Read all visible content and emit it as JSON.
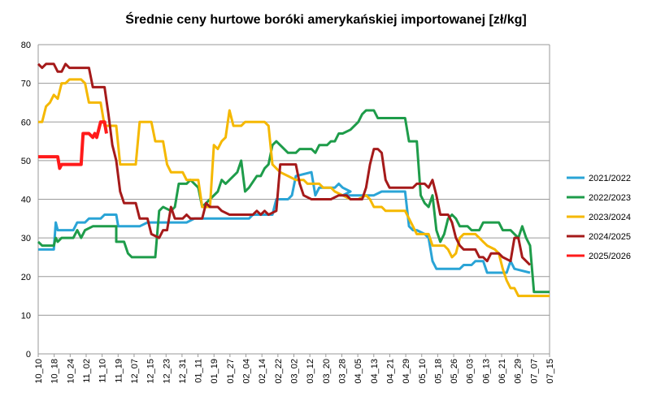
{
  "chart_data": {
    "type": "line",
    "title": "Średnie ceny hurtowe boróki amerykańskiej importowanej [zł/kg]",
    "xlabel": "",
    "ylabel": "",
    "ylim": [
      0,
      80
    ],
    "yticks": [
      0,
      10,
      20,
      30,
      40,
      50,
      60,
      70,
      80
    ],
    "grid": "horizontal",
    "legend": "right",
    "x_ticks": [
      "10_10",
      "10_18",
      "10_24",
      "11_02",
      "11_10",
      "11_19",
      "12_07",
      "12_15",
      "12_23",
      "12_31",
      "01_11",
      "01_19",
      "01_27",
      "02_04",
      "02_14",
      "02_22",
      "03_02",
      "03_12",
      "03_20",
      "03_28",
      "04_05",
      "04_13",
      "04_21",
      "04_29",
      "05_10",
      "05_18",
      "05_26",
      "06_03",
      "06_13",
      "06_21",
      "06_29",
      "07_07",
      "07_15"
    ],
    "x_count": 127,
    "series": [
      {
        "name": "2021/2022",
        "color": "#2AA4D6",
        "points": [
          [
            0,
            27
          ],
          [
            4,
            27
          ],
          [
            4.5,
            34
          ],
          [
            5,
            32
          ],
          [
            9,
            32
          ],
          [
            10,
            34
          ],
          [
            12,
            34
          ],
          [
            13,
            35
          ],
          [
            16,
            35
          ],
          [
            17,
            36
          ],
          [
            20,
            36
          ],
          [
            20.5,
            33
          ],
          [
            22,
            33
          ],
          [
            24,
            33
          ],
          [
            26,
            33
          ],
          [
            28,
            34
          ],
          [
            35,
            34
          ],
          [
            38,
            34
          ],
          [
            40,
            35
          ],
          [
            48,
            35
          ],
          [
            54,
            35
          ],
          [
            55,
            36
          ],
          [
            60,
            36
          ],
          [
            61,
            40
          ],
          [
            64,
            40
          ],
          [
            65,
            41
          ],
          [
            66,
            46
          ],
          [
            70,
            47
          ],
          [
            71,
            41
          ],
          [
            72,
            43
          ],
          [
            76,
            43
          ],
          [
            77,
            44
          ],
          [
            78,
            43
          ],
          [
            80,
            42
          ],
          [
            78,
            41
          ],
          [
            80,
            41
          ],
          [
            86,
            41
          ],
          [
            88,
            42
          ],
          [
            94,
            42
          ],
          [
            95,
            33
          ],
          [
            96,
            32
          ],
          [
            97,
            32
          ],
          [
            99,
            31
          ],
          [
            100,
            30
          ],
          [
            101,
            24
          ],
          [
            102,
            22
          ],
          [
            108,
            22
          ],
          [
            109,
            23
          ],
          [
            111,
            23
          ],
          [
            112,
            24
          ],
          [
            114,
            24
          ],
          [
            115,
            21
          ],
          [
            120,
            21
          ],
          [
            121,
            24
          ],
          [
            122,
            22
          ],
          [
            126,
            21
          ]
        ]
      },
      {
        "name": "2022/2023",
        "color": "#1E9C4A",
        "points": [
          [
            0,
            29
          ],
          [
            1,
            28
          ],
          [
            4,
            28
          ],
          [
            4.5,
            30
          ],
          [
            5,
            29
          ],
          [
            6,
            30
          ],
          [
            9,
            30
          ],
          [
            10,
            32
          ],
          [
            11,
            30
          ],
          [
            12,
            32
          ],
          [
            14,
            33
          ],
          [
            20,
            33
          ],
          [
            20,
            29
          ],
          [
            22,
            29
          ],
          [
            23,
            26
          ],
          [
            24,
            25
          ],
          [
            30,
            25
          ],
          [
            31,
            37
          ],
          [
            32,
            38
          ],
          [
            34,
            37
          ],
          [
            35,
            38
          ],
          [
            36,
            44
          ],
          [
            38,
            44
          ],
          [
            39,
            45
          ],
          [
            40,
            44
          ],
          [
            41,
            43
          ],
          [
            42,
            38
          ],
          [
            44,
            40
          ],
          [
            46,
            42
          ],
          [
            47,
            45
          ],
          [
            48,
            44
          ],
          [
            50,
            46
          ],
          [
            51,
            47
          ],
          [
            52,
            50
          ],
          [
            53,
            42
          ],
          [
            54,
            43
          ],
          [
            56,
            46
          ],
          [
            57,
            46
          ],
          [
            58,
            48
          ],
          [
            59,
            49
          ],
          [
            60,
            54
          ],
          [
            61,
            55
          ],
          [
            62,
            54
          ],
          [
            63,
            53
          ],
          [
            64,
            52
          ],
          [
            66,
            52
          ],
          [
            67,
            53
          ],
          [
            70,
            53
          ],
          [
            71,
            52
          ],
          [
            72,
            54
          ],
          [
            74,
            54
          ],
          [
            75,
            55
          ],
          [
            76,
            55
          ],
          [
            77,
            57
          ],
          [
            78,
            57
          ],
          [
            80,
            58
          ],
          [
            82,
            60
          ],
          [
            83,
            62
          ],
          [
            84,
            63
          ],
          [
            86,
            63
          ],
          [
            87,
            61
          ],
          [
            94,
            61
          ],
          [
            95,
            55
          ],
          [
            97,
            55
          ],
          [
            98,
            41
          ],
          [
            99,
            39
          ],
          [
            100,
            38
          ],
          [
            101,
            41
          ],
          [
            102,
            32
          ],
          [
            103,
            29
          ],
          [
            104,
            31
          ],
          [
            105,
            35
          ],
          [
            106,
            36
          ],
          [
            107,
            35
          ],
          [
            108,
            33
          ],
          [
            110,
            33
          ],
          [
            111,
            32
          ],
          [
            112,
            32
          ],
          [
            113,
            32
          ],
          [
            114,
            34
          ],
          [
            118,
            34
          ],
          [
            119,
            32
          ],
          [
            121,
            32
          ],
          [
            122,
            31
          ],
          [
            123,
            30
          ],
          [
            124,
            33
          ],
          [
            125,
            30
          ],
          [
            126,
            28
          ],
          [
            127,
            16
          ],
          [
            131,
            16
          ]
        ]
      },
      {
        "name": "2023/2024",
        "color": "#F5B800",
        "points": [
          [
            0,
            60
          ],
          [
            1,
            60
          ],
          [
            2,
            64
          ],
          [
            3,
            65
          ],
          [
            4,
            67
          ],
          [
            5,
            66
          ],
          [
            6,
            70
          ],
          [
            7,
            70
          ],
          [
            8,
            71
          ],
          [
            11,
            71
          ],
          [
            12,
            70
          ],
          [
            13,
            65
          ],
          [
            16,
            65
          ],
          [
            17,
            59
          ],
          [
            20,
            59
          ],
          [
            21,
            49
          ],
          [
            22,
            49
          ],
          [
            25,
            49
          ],
          [
            26,
            60
          ],
          [
            29,
            60
          ],
          [
            30,
            55
          ],
          [
            32,
            55
          ],
          [
            33,
            49
          ],
          [
            34,
            47
          ],
          [
            37,
            47
          ],
          [
            38,
            45
          ],
          [
            41,
            45
          ],
          [
            42,
            38
          ],
          [
            44,
            38
          ],
          [
            45,
            54
          ],
          [
            46,
            53
          ],
          [
            47,
            55
          ],
          [
            48,
            56
          ],
          [
            49,
            63
          ],
          [
            50,
            59
          ],
          [
            52,
            59
          ],
          [
            53,
            60
          ],
          [
            58,
            60
          ],
          [
            59,
            59
          ],
          [
            60,
            49
          ],
          [
            61,
            48
          ],
          [
            62,
            47
          ],
          [
            64,
            46
          ],
          [
            66,
            45
          ],
          [
            68,
            45
          ],
          [
            69,
            44
          ],
          [
            72,
            44
          ],
          [
            73,
            43
          ],
          [
            75,
            43
          ],
          [
            76,
            42
          ],
          [
            78,
            41
          ],
          [
            80,
            40
          ],
          [
            82,
            40
          ],
          [
            84,
            41
          ],
          [
            85,
            40
          ],
          [
            86,
            38
          ],
          [
            88,
            38
          ],
          [
            89,
            37
          ],
          [
            94,
            37
          ],
          [
            95,
            35
          ],
          [
            96,
            33
          ],
          [
            97,
            31
          ],
          [
            100,
            31
          ],
          [
            101,
            28
          ],
          [
            104,
            28
          ],
          [
            105,
            27
          ],
          [
            106,
            25
          ],
          [
            107,
            26
          ],
          [
            108,
            30
          ],
          [
            109,
            31
          ],
          [
            112,
            31
          ],
          [
            113,
            30
          ],
          [
            114,
            29
          ],
          [
            115,
            28
          ],
          [
            117,
            27
          ],
          [
            118,
            26
          ],
          [
            119,
            22
          ],
          [
            120,
            19
          ],
          [
            121,
            17
          ],
          [
            122,
            17
          ],
          [
            123,
            15
          ],
          [
            131,
            15
          ]
        ]
      },
      {
        "name": "2024/2025",
        "color": "#A51A1A",
        "points": [
          [
            0,
            75
          ],
          [
            1,
            74
          ],
          [
            2,
            75
          ],
          [
            4,
            75
          ],
          [
            5,
            73
          ],
          [
            6,
            73
          ],
          [
            7,
            75
          ],
          [
            8,
            74
          ],
          [
            9,
            74
          ],
          [
            10,
            74
          ],
          [
            13,
            74
          ],
          [
            14,
            69
          ],
          [
            17,
            69
          ],
          [
            18,
            62
          ],
          [
            19,
            54
          ],
          [
            20,
            50
          ],
          [
            21,
            42
          ],
          [
            22,
            39
          ],
          [
            25,
            39
          ],
          [
            26,
            35
          ],
          [
            28,
            35
          ],
          [
            29,
            31
          ],
          [
            31,
            30
          ],
          [
            32,
            32
          ],
          [
            33,
            32
          ],
          [
            34,
            38
          ],
          [
            35,
            35
          ],
          [
            37,
            35
          ],
          [
            38,
            36
          ],
          [
            39,
            35
          ],
          [
            42,
            35
          ],
          [
            43,
            39
          ],
          [
            44,
            38
          ],
          [
            46,
            38
          ],
          [
            47,
            37
          ],
          [
            49,
            36
          ],
          [
            55,
            36
          ],
          [
            56,
            37
          ],
          [
            57,
            36
          ],
          [
            58,
            37
          ],
          [
            59,
            36
          ],
          [
            61,
            37
          ],
          [
            62,
            49
          ],
          [
            66,
            49
          ],
          [
            67,
            44
          ],
          [
            68,
            41
          ],
          [
            70,
            40
          ],
          [
            75,
            40
          ],
          [
            77,
            41
          ],
          [
            79,
            41
          ],
          [
            80,
            40
          ],
          [
            83,
            40
          ],
          [
            84,
            43
          ],
          [
            85,
            49
          ],
          [
            86,
            53
          ],
          [
            87,
            53
          ],
          [
            88,
            52
          ],
          [
            89,
            45
          ],
          [
            90,
            43
          ],
          [
            94,
            43
          ],
          [
            96,
            43
          ],
          [
            97,
            44
          ],
          [
            99,
            44
          ],
          [
            100,
            43
          ],
          [
            101,
            45
          ],
          [
            102,
            41
          ],
          [
            103,
            36
          ],
          [
            105,
            36
          ],
          [
            106,
            34
          ],
          [
            107,
            30
          ],
          [
            108,
            28
          ],
          [
            109,
            27
          ],
          [
            112,
            27
          ],
          [
            113,
            25
          ],
          [
            114,
            25
          ],
          [
            115,
            24
          ],
          [
            116,
            26
          ],
          [
            118,
            26
          ],
          [
            119,
            25
          ],
          [
            121,
            24
          ],
          [
            122,
            30
          ],
          [
            123,
            30
          ],
          [
            124,
            25
          ],
          [
            125,
            24
          ],
          [
            126,
            23
          ]
        ]
      },
      {
        "name": "2025/2026",
        "color": "#FF1A1A",
        "points": [
          [
            0,
            51
          ],
          [
            5,
            51
          ],
          [
            5.5,
            48
          ],
          [
            6,
            49
          ],
          [
            11,
            49
          ],
          [
            11.5,
            57
          ],
          [
            13,
            57
          ],
          [
            14,
            56
          ],
          [
            14.5,
            57
          ],
          [
            15,
            56
          ],
          [
            16,
            60
          ],
          [
            17,
            60
          ],
          [
            17.5,
            57
          ]
        ]
      }
    ]
  }
}
